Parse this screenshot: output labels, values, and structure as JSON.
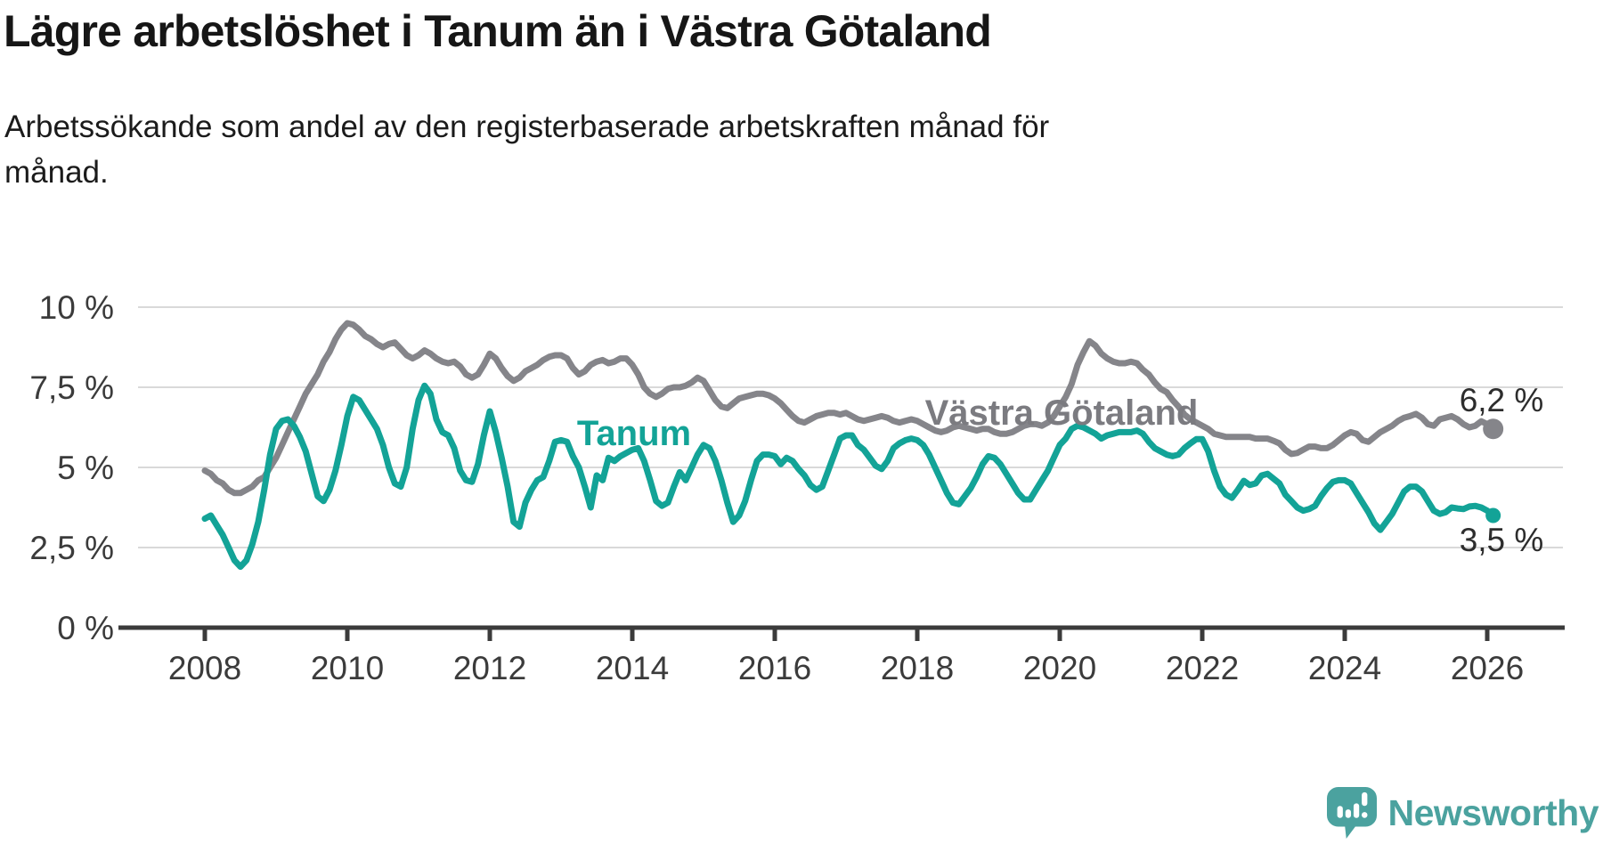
{
  "header": {
    "title": "Lägre arbetslöshet i Tanum än i Västra Götaland",
    "subtitle_lines": [
      "Arbetssökande som andel av den registerbaserade arbetskraften månad för",
      "månad."
    ]
  },
  "footer": {
    "logo_text": "Newsworthy",
    "logo_icon": "newsworthy-speech-bubble-bar-chart-icon"
  },
  "colors": {
    "tanum_line": "#13a397",
    "vastra_gotaland_line": "#85858a",
    "vastra_gotaland_label": "#7b7b80",
    "axis_text": "#3b3b3b",
    "axis_line": "#3b3b3b",
    "gridline": "#d9d9d9",
    "value_label": "#2d2d2d",
    "logo_teal": "#4ba29f",
    "background": "#ffffff",
    "title_text": "#161616"
  },
  "chart_data": {
    "type": "line",
    "title": "Lägre arbetslöshet i Tanum än i Västra Götaland",
    "subtitle": "Arbetssökande som andel av den registerbaserade arbetskraften månad för månad.",
    "x_start": "2008-01",
    "x_end": "2026-02",
    "frequency": "monthly",
    "x_tick_labels": [
      "2008",
      "2010",
      "2012",
      "2014",
      "2016",
      "2018",
      "2020",
      "2022",
      "2024",
      "2026"
    ],
    "y_ticks": [
      {
        "value": 0,
        "label": "0 %"
      },
      {
        "value": 2.5,
        "label": "2,5 %"
      },
      {
        "value": 5,
        "label": "5 %"
      },
      {
        "value": 7.5,
        "label": "7,5 %"
      },
      {
        "value": 10,
        "label": "10 %"
      }
    ],
    "ylim": [
      0,
      11.1
    ],
    "xlim_years": [
      2006.8,
      2027.1
    ],
    "grid": "horizontal",
    "legend_position": "inline-labels",
    "series": [
      {
        "name": "Västra Götaland",
        "color": "#85858a",
        "end_value": 6.2,
        "end_value_label": "6,2 %",
        "values": [
          4.9,
          4.8,
          4.6,
          4.5,
          4.3,
          4.2,
          4.2,
          4.3,
          4.4,
          4.6,
          4.7,
          5.0,
          5.3,
          5.7,
          6.1,
          6.5,
          6.9,
          7.3,
          7.6,
          7.9,
          8.3,
          8.6,
          9.0,
          9.3,
          9.5,
          9.45,
          9.3,
          9.1,
          9.0,
          8.85,
          8.75,
          8.85,
          8.9,
          8.7,
          8.5,
          8.4,
          8.5,
          8.65,
          8.55,
          8.4,
          8.3,
          8.25,
          8.3,
          8.15,
          7.9,
          7.8,
          7.9,
          8.2,
          8.55,
          8.4,
          8.1,
          7.85,
          7.7,
          7.8,
          8.0,
          8.1,
          8.2,
          8.35,
          8.45,
          8.5,
          8.5,
          8.4,
          8.1,
          7.9,
          8.0,
          8.2,
          8.3,
          8.35,
          8.25,
          8.3,
          8.4,
          8.4,
          8.2,
          7.9,
          7.5,
          7.3,
          7.2,
          7.3,
          7.45,
          7.5,
          7.5,
          7.55,
          7.65,
          7.8,
          7.7,
          7.4,
          7.1,
          6.9,
          6.85,
          7.0,
          7.15,
          7.2,
          7.25,
          7.3,
          7.3,
          7.25,
          7.15,
          7.0,
          6.8,
          6.6,
          6.45,
          6.4,
          6.5,
          6.6,
          6.65,
          6.7,
          6.7,
          6.65,
          6.7,
          6.6,
          6.5,
          6.45,
          6.5,
          6.55,
          6.6,
          6.55,
          6.45,
          6.4,
          6.45,
          6.5,
          6.45,
          6.35,
          6.25,
          6.15,
          6.1,
          6.15,
          6.25,
          6.3,
          6.25,
          6.2,
          6.15,
          6.2,
          6.2,
          6.1,
          6.05,
          6.05,
          6.1,
          6.2,
          6.3,
          6.35,
          6.35,
          6.3,
          6.4,
          6.6,
          6.9,
          7.2,
          7.6,
          8.2,
          8.6,
          8.94,
          8.8,
          8.55,
          8.4,
          8.3,
          8.25,
          8.25,
          8.3,
          8.25,
          8.05,
          7.9,
          7.65,
          7.45,
          7.35,
          7.1,
          6.9,
          6.65,
          6.5,
          6.4,
          6.3,
          6.2,
          6.05,
          6.0,
          5.95,
          5.95,
          5.95,
          5.95,
          5.95,
          5.9,
          5.9,
          5.9,
          5.83,
          5.75,
          5.55,
          5.42,
          5.45,
          5.55,
          5.65,
          5.65,
          5.6,
          5.6,
          5.7,
          5.85,
          6.0,
          6.1,
          6.05,
          5.85,
          5.8,
          5.95,
          6.1,
          6.2,
          6.3,
          6.45,
          6.55,
          6.6,
          6.67,
          6.55,
          6.35,
          6.3,
          6.5,
          6.55,
          6.6,
          6.5,
          6.35,
          6.25,
          6.3,
          6.44,
          6.35,
          6.2
        ]
      },
      {
        "name": "Tanum",
        "color": "#13a397",
        "end_value": 3.5,
        "end_value_label": "3,5 %",
        "values": [
          3.4,
          3.5,
          3.2,
          2.9,
          2.5,
          2.1,
          1.9,
          2.1,
          2.6,
          3.3,
          4.3,
          5.4,
          6.2,
          6.45,
          6.5,
          6.3,
          5.95,
          5.5,
          4.8,
          4.1,
          3.95,
          4.3,
          4.9,
          5.7,
          6.6,
          7.2,
          7.1,
          6.8,
          6.5,
          6.2,
          5.7,
          5.0,
          4.5,
          4.4,
          5.0,
          6.2,
          7.1,
          7.55,
          7.3,
          6.5,
          6.1,
          6.0,
          5.6,
          4.9,
          4.6,
          4.55,
          5.1,
          6.0,
          6.75,
          6.1,
          5.3,
          4.4,
          3.3,
          3.15,
          3.9,
          4.3,
          4.6,
          4.7,
          5.2,
          5.8,
          5.85,
          5.8,
          5.35,
          5.0,
          4.4,
          3.75,
          4.75,
          4.6,
          5.3,
          5.2,
          5.35,
          5.45,
          5.55,
          5.6,
          5.2,
          4.6,
          3.95,
          3.8,
          3.9,
          4.4,
          4.85,
          4.6,
          5.0,
          5.4,
          5.7,
          5.6,
          5.2,
          4.6,
          3.9,
          3.3,
          3.5,
          3.95,
          4.6,
          5.2,
          5.4,
          5.4,
          5.35,
          5.1,
          5.3,
          5.2,
          4.95,
          4.75,
          4.45,
          4.3,
          4.4,
          4.9,
          5.4,
          5.9,
          6.0,
          6.0,
          5.7,
          5.55,
          5.3,
          5.05,
          4.95,
          5.2,
          5.6,
          5.75,
          5.85,
          5.9,
          5.85,
          5.7,
          5.4,
          5.0,
          4.6,
          4.2,
          3.9,
          3.85,
          4.1,
          4.35,
          4.7,
          5.1,
          5.35,
          5.3,
          5.1,
          4.8,
          4.5,
          4.2,
          4.0,
          4.0,
          4.3,
          4.6,
          4.9,
          5.3,
          5.7,
          5.9,
          6.2,
          6.3,
          6.25,
          6.15,
          6.05,
          5.9,
          6.0,
          6.05,
          6.1,
          6.1,
          6.1,
          6.15,
          6.05,
          5.8,
          5.6,
          5.5,
          5.4,
          5.35,
          5.4,
          5.6,
          5.75,
          5.88,
          5.88,
          5.5,
          4.9,
          4.4,
          4.15,
          4.05,
          4.3,
          4.58,
          4.45,
          4.5,
          4.75,
          4.8,
          4.65,
          4.5,
          4.15,
          3.95,
          3.75,
          3.65,
          3.7,
          3.8,
          4.1,
          4.35,
          4.55,
          4.6,
          4.6,
          4.5,
          4.2,
          3.9,
          3.6,
          3.25,
          3.05,
          3.3,
          3.55,
          3.9,
          4.25,
          4.4,
          4.4,
          4.25,
          3.95,
          3.65,
          3.55,
          3.6,
          3.75,
          3.72,
          3.7,
          3.78,
          3.8,
          3.75,
          3.65,
          3.5
        ]
      }
    ]
  }
}
